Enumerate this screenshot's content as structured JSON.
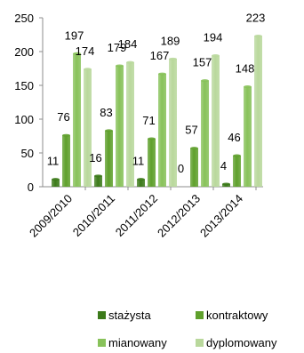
{
  "chart_data": {
    "type": "bar",
    "categories": [
      "2009/2010",
      "2010/2011",
      "2011/2012",
      "2012/2013",
      "2013/2014"
    ],
    "series": [
      {
        "name": "stażysta",
        "values": [
          11,
          16,
          11,
          0,
          4
        ],
        "color": "#3c7a1a"
      },
      {
        "name": "kontraktowy",
        "values": [
          76,
          83,
          71,
          57,
          46
        ],
        "color": "#5fa02c"
      },
      {
        "name": "mianowany",
        "values": [
          197,
          179,
          167,
          157,
          148
        ],
        "color": "#88c25a"
      },
      {
        "name": "dyplomowany",
        "values": [
          174,
          184,
          189,
          194,
          223
        ],
        "color": "#b9d89c"
      }
    ],
    "ylim": [
      0,
      250
    ],
    "yticks": [
      "0",
      "50",
      "100",
      "150",
      "200",
      "250"
    ],
    "grid": false,
    "legend_position": "bottom",
    "title": "",
    "xlabel": "",
    "ylabel": ""
  }
}
